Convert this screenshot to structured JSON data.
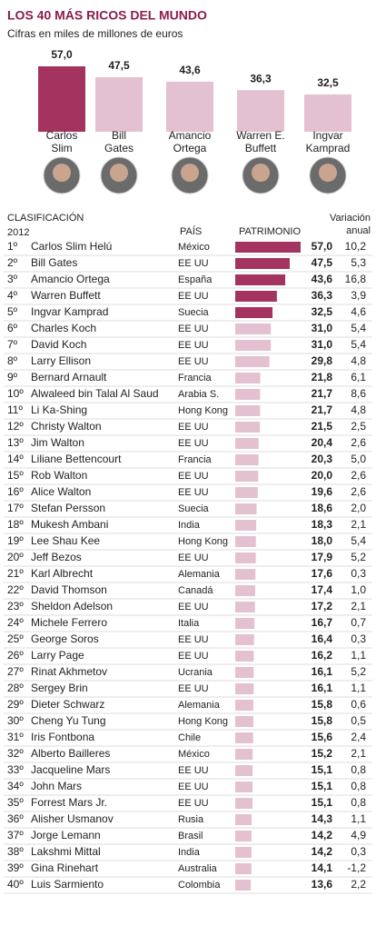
{
  "title": "LOS 40 MÁS RICOS DEL MUNDO",
  "subtitle": "Cifras en miles de millones de euros",
  "chart_data": {
    "type": "bar",
    "categories": [
      "Carlos\nSlim",
      "Bill\nGates",
      "Amancio\nOrtega",
      "Warren E.\nBuffett",
      "Ingvar\nKamprad"
    ],
    "values": [
      57.0,
      47.5,
      43.6,
      36.3,
      32.5
    ],
    "value_labels": [
      "57,0",
      "47,5",
      "43,6",
      "36,3",
      "32,5"
    ],
    "colors": [
      "#a3345f",
      "#e4c1d0",
      "#e4c1d0",
      "#e4c1d0",
      "#e4c1d0"
    ]
  },
  "table": {
    "headers": {
      "rank": "CLASIFICACIÓN",
      "year": "2012",
      "country": "PAÍS",
      "wealth": "PATRIMONIO",
      "change": "Variación\nanual"
    },
    "rows": [
      [
        "1º",
        "Carlos Slim Helú",
        "México",
        57.0,
        "57,0",
        "10,2",
        "#a3345f"
      ],
      [
        "2º",
        "Bill Gates",
        "EE UU",
        47.5,
        "47,5",
        "5,3",
        "#a3345f"
      ],
      [
        "3º",
        "Amancio Ortega",
        "España",
        43.6,
        "43,6",
        "16,8",
        "#a3345f"
      ],
      [
        "4º",
        "Warren Buffett",
        "EE UU",
        36.3,
        "36,3",
        "3,9",
        "#a3345f"
      ],
      [
        "5º",
        "Ingvar Kamprad",
        "Suecia",
        32.5,
        "32,5",
        "4,6",
        "#a3345f"
      ],
      [
        "6º",
        "Charles Koch",
        "EE UU",
        31.0,
        "31,0",
        "5,4",
        "#e4c1d0"
      ],
      [
        "7º",
        "David Koch",
        "EE UU",
        31.0,
        "31,0",
        "5,4",
        "#e4c1d0"
      ],
      [
        "8º",
        "Larry Ellison",
        "EE UU",
        29.8,
        "29,8",
        "4,8",
        "#e4c1d0"
      ],
      [
        "9º",
        "Bernard Arnault",
        "Francia",
        21.8,
        "21,8",
        "6,1",
        "#e4c1d0"
      ],
      [
        "10º",
        "Alwaleed bin Talal Al Saud",
        "Arabia S.",
        21.7,
        "21,7",
        "8,6",
        "#e4c1d0"
      ],
      [
        "11º",
        "Li Ka-Shing",
        "Hong Kong",
        21.7,
        "21,7",
        "4,8",
        "#e4c1d0"
      ],
      [
        "12º",
        "Christy Walton",
        "EE UU",
        21.5,
        "21,5",
        "2,5",
        "#e4c1d0"
      ],
      [
        "13º",
        "Jim Walton",
        "EE UU",
        20.4,
        "20,4",
        "2,6",
        "#e4c1d0"
      ],
      [
        "14º",
        "Liliane Bettencourt",
        "Francia",
        20.3,
        "20,3",
        "5,0",
        "#e4c1d0"
      ],
      [
        "15º",
        "Rob Walton",
        "EE UU",
        20.0,
        "20,0",
        "2,6",
        "#e4c1d0"
      ],
      [
        "16º",
        "Alice Walton",
        "EE UU",
        19.6,
        "19,6",
        "2,6",
        "#e4c1d0"
      ],
      [
        "17º",
        "Stefan Persson",
        "Suecia",
        18.6,
        "18,6",
        "2,0",
        "#e4c1d0"
      ],
      [
        "18º",
        "Mukesh Ambani",
        "India",
        18.3,
        "18,3",
        "2,1",
        "#e4c1d0"
      ],
      [
        "19º",
        "Lee Shau Kee",
        "Hong Kong",
        18.0,
        "18,0",
        "5,4",
        "#e4c1d0"
      ],
      [
        "20º",
        "Jeff Bezos",
        "EE UU",
        17.9,
        "17,9",
        "5,2",
        "#e4c1d0"
      ],
      [
        "21º",
        "Karl Albrecht",
        "Alemania",
        17.6,
        "17,6",
        "0,3",
        "#e4c1d0"
      ],
      [
        "22º",
        "David Thomson",
        "Canadá",
        17.4,
        "17,4",
        "1,0",
        "#e4c1d0"
      ],
      [
        "23º",
        "Sheldon Adelson",
        "EE UU",
        17.2,
        "17,2",
        "2,1",
        "#e4c1d0"
      ],
      [
        "24º",
        "Michele Ferrero",
        "Italia",
        16.7,
        "16,7",
        "0,7",
        "#e4c1d0"
      ],
      [
        "25º",
        "George Soros",
        "EE UU",
        16.4,
        "16,4",
        "0,3",
        "#e4c1d0"
      ],
      [
        "26º",
        "Larry Page",
        "EE UU",
        16.2,
        "16,2",
        "1,1",
        "#e4c1d0"
      ],
      [
        "27º",
        "Rinat Akhmetov",
        "Ucrania",
        16.1,
        "16,1",
        "5,2",
        "#e4c1d0"
      ],
      [
        "28º",
        "Sergey Brin",
        "EE UU",
        16.1,
        "16,1",
        "1,1",
        "#e4c1d0"
      ],
      [
        "29º",
        "Dieter Schwarz",
        "Alemania",
        15.8,
        "15,8",
        "0,6",
        "#e4c1d0"
      ],
      [
        "30º",
        "Cheng Yu Tung",
        "Hong Kong",
        15.8,
        "15,8",
        "0,5",
        "#e4c1d0"
      ],
      [
        "31º",
        "Iris Fontbona",
        "Chile",
        15.6,
        "15,6",
        "2,4",
        "#e4c1d0"
      ],
      [
        "32º",
        "Alberto Bailleres",
        "México",
        15.2,
        "15,2",
        "2,1",
        "#e4c1d0"
      ],
      [
        "33º",
        "Jacqueline Mars",
        "EE UU",
        15.1,
        "15,1",
        "0,8",
        "#e4c1d0"
      ],
      [
        "34º",
        "John Mars",
        "EE UU",
        15.1,
        "15,1",
        "0,8",
        "#e4c1d0"
      ],
      [
        "35º",
        "Forrest Mars Jr.",
        "EE UU",
        15.1,
        "15,1",
        "0,8",
        "#e4c1d0"
      ],
      [
        "36º",
        "Alisher Usmanov",
        "Rusia",
        14.3,
        "14,3",
        "1,1",
        "#e4c1d0"
      ],
      [
        "37º",
        "Jorge Lemann",
        "Brasil",
        14.2,
        "14,2",
        "4,9",
        "#e4c1d0"
      ],
      [
        "38º",
        "Lakshmi Mittal",
        "India",
        14.2,
        "14,2",
        "0,3",
        "#e4c1d0"
      ],
      [
        "39º",
        "Gina Rinehart",
        "Australia",
        14.1,
        "14,1",
        "-1,2",
        "#e4c1d0"
      ],
      [
        "40º",
        "Luis Sarmiento",
        "Colombia",
        13.6,
        "13,6",
        "2,2",
        "#e4c1d0"
      ]
    ]
  }
}
